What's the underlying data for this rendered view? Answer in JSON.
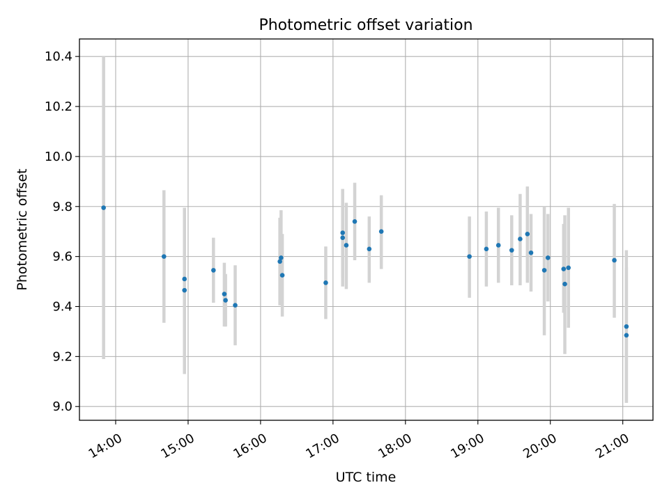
{
  "chart_data": {
    "type": "scatter",
    "title": "Photometric offset variation",
    "xlabel": "UTC time",
    "ylabel": "Photometric offset",
    "x_tick_labels": [
      "14:00",
      "15:00",
      "16:00",
      "17:00",
      "18:00",
      "19:00",
      "20:00",
      "21:00"
    ],
    "x_tick_hours": [
      14,
      15,
      16,
      17,
      18,
      19,
      20,
      21
    ],
    "y_tick_labels": [
      "9.0",
      "9.2",
      "9.4",
      "9.6",
      "9.8",
      "10.0",
      "10.2",
      "10.4"
    ],
    "y_tick_values": [
      9.0,
      9.2,
      9.4,
      9.6,
      9.8,
      10.0,
      10.2,
      10.4
    ],
    "xlim": [
      "13:30",
      "21:25"
    ],
    "ylim": [
      8.945,
      10.47
    ],
    "grid": true,
    "point_color": "#1f77b4",
    "errorbar_color": "#d3d3d3",
    "points": [
      {
        "x": "13:50",
        "y": 9.795,
        "low": 9.19,
        "high": 10.4
      },
      {
        "x": "14:40",
        "y": 9.6,
        "low": 9.335,
        "high": 9.865
      },
      {
        "x": "14:57",
        "y": 9.51,
        "low": 9.225,
        "high": 9.795
      },
      {
        "x": "14:57",
        "y": 9.465,
        "low": 9.13,
        "high": 9.795
      },
      {
        "x": "15:21",
        "y": 9.545,
        "low": 9.415,
        "high": 9.675
      },
      {
        "x": "15:30",
        "y": 9.45,
        "low": 9.32,
        "high": 9.575
      },
      {
        "x": "15:31",
        "y": 9.425,
        "low": 9.32,
        "high": 9.53
      },
      {
        "x": "15:39",
        "y": 9.405,
        "low": 9.245,
        "high": 9.565
      },
      {
        "x": "16:16",
        "y": 9.58,
        "low": 9.405,
        "high": 9.755
      },
      {
        "x": "16:17",
        "y": 9.595,
        "low": 9.405,
        "high": 9.785
      },
      {
        "x": "16:18",
        "y": 9.525,
        "low": 9.36,
        "high": 9.69
      },
      {
        "x": "16:54",
        "y": 9.495,
        "low": 9.35,
        "high": 9.64
      },
      {
        "x": "17:08",
        "y": 9.675,
        "low": 9.48,
        "high": 9.87
      },
      {
        "x": "17:08",
        "y": 9.695,
        "low": 9.515,
        "high": 9.87
      },
      {
        "x": "17:11",
        "y": 9.645,
        "low": 9.47,
        "high": 9.815
      },
      {
        "x": "17:18",
        "y": 9.74,
        "low": 9.585,
        "high": 9.895
      },
      {
        "x": "17:30",
        "y": 9.63,
        "low": 9.495,
        "high": 9.76
      },
      {
        "x": "17:40",
        "y": 9.7,
        "low": 9.55,
        "high": 9.845
      },
      {
        "x": "18:53",
        "y": 9.6,
        "low": 9.435,
        "high": 9.76
      },
      {
        "x": "19:07",
        "y": 9.63,
        "low": 9.48,
        "high": 9.78
      },
      {
        "x": "19:17",
        "y": 9.645,
        "low": 9.495,
        "high": 9.795
      },
      {
        "x": "19:28",
        "y": 9.625,
        "low": 9.485,
        "high": 9.765
      },
      {
        "x": "19:35",
        "y": 9.67,
        "low": 9.485,
        "high": 9.85
      },
      {
        "x": "19:41",
        "y": 9.69,
        "low": 9.495,
        "high": 9.88
      },
      {
        "x": "19:44",
        "y": 9.615,
        "low": 9.46,
        "high": 9.77
      },
      {
        "x": "19:55",
        "y": 9.545,
        "low": 9.285,
        "high": 9.8
      },
      {
        "x": "19:58",
        "y": 9.595,
        "low": 9.42,
        "high": 9.77
      },
      {
        "x": "20:11",
        "y": 9.55,
        "low": 9.375,
        "high": 9.73
      },
      {
        "x": "20:12",
        "y": 9.49,
        "low": 9.21,
        "high": 9.765
      },
      {
        "x": "20:15",
        "y": 9.555,
        "low": 9.315,
        "high": 9.795
      },
      {
        "x": "20:53",
        "y": 9.585,
        "low": 9.355,
        "high": 9.81
      },
      {
        "x": "21:03",
        "y": 9.32,
        "low": 9.015,
        "high": 9.625
      },
      {
        "x": "21:03",
        "y": 9.285,
        "low": 9.015,
        "high": 9.555
      }
    ]
  }
}
